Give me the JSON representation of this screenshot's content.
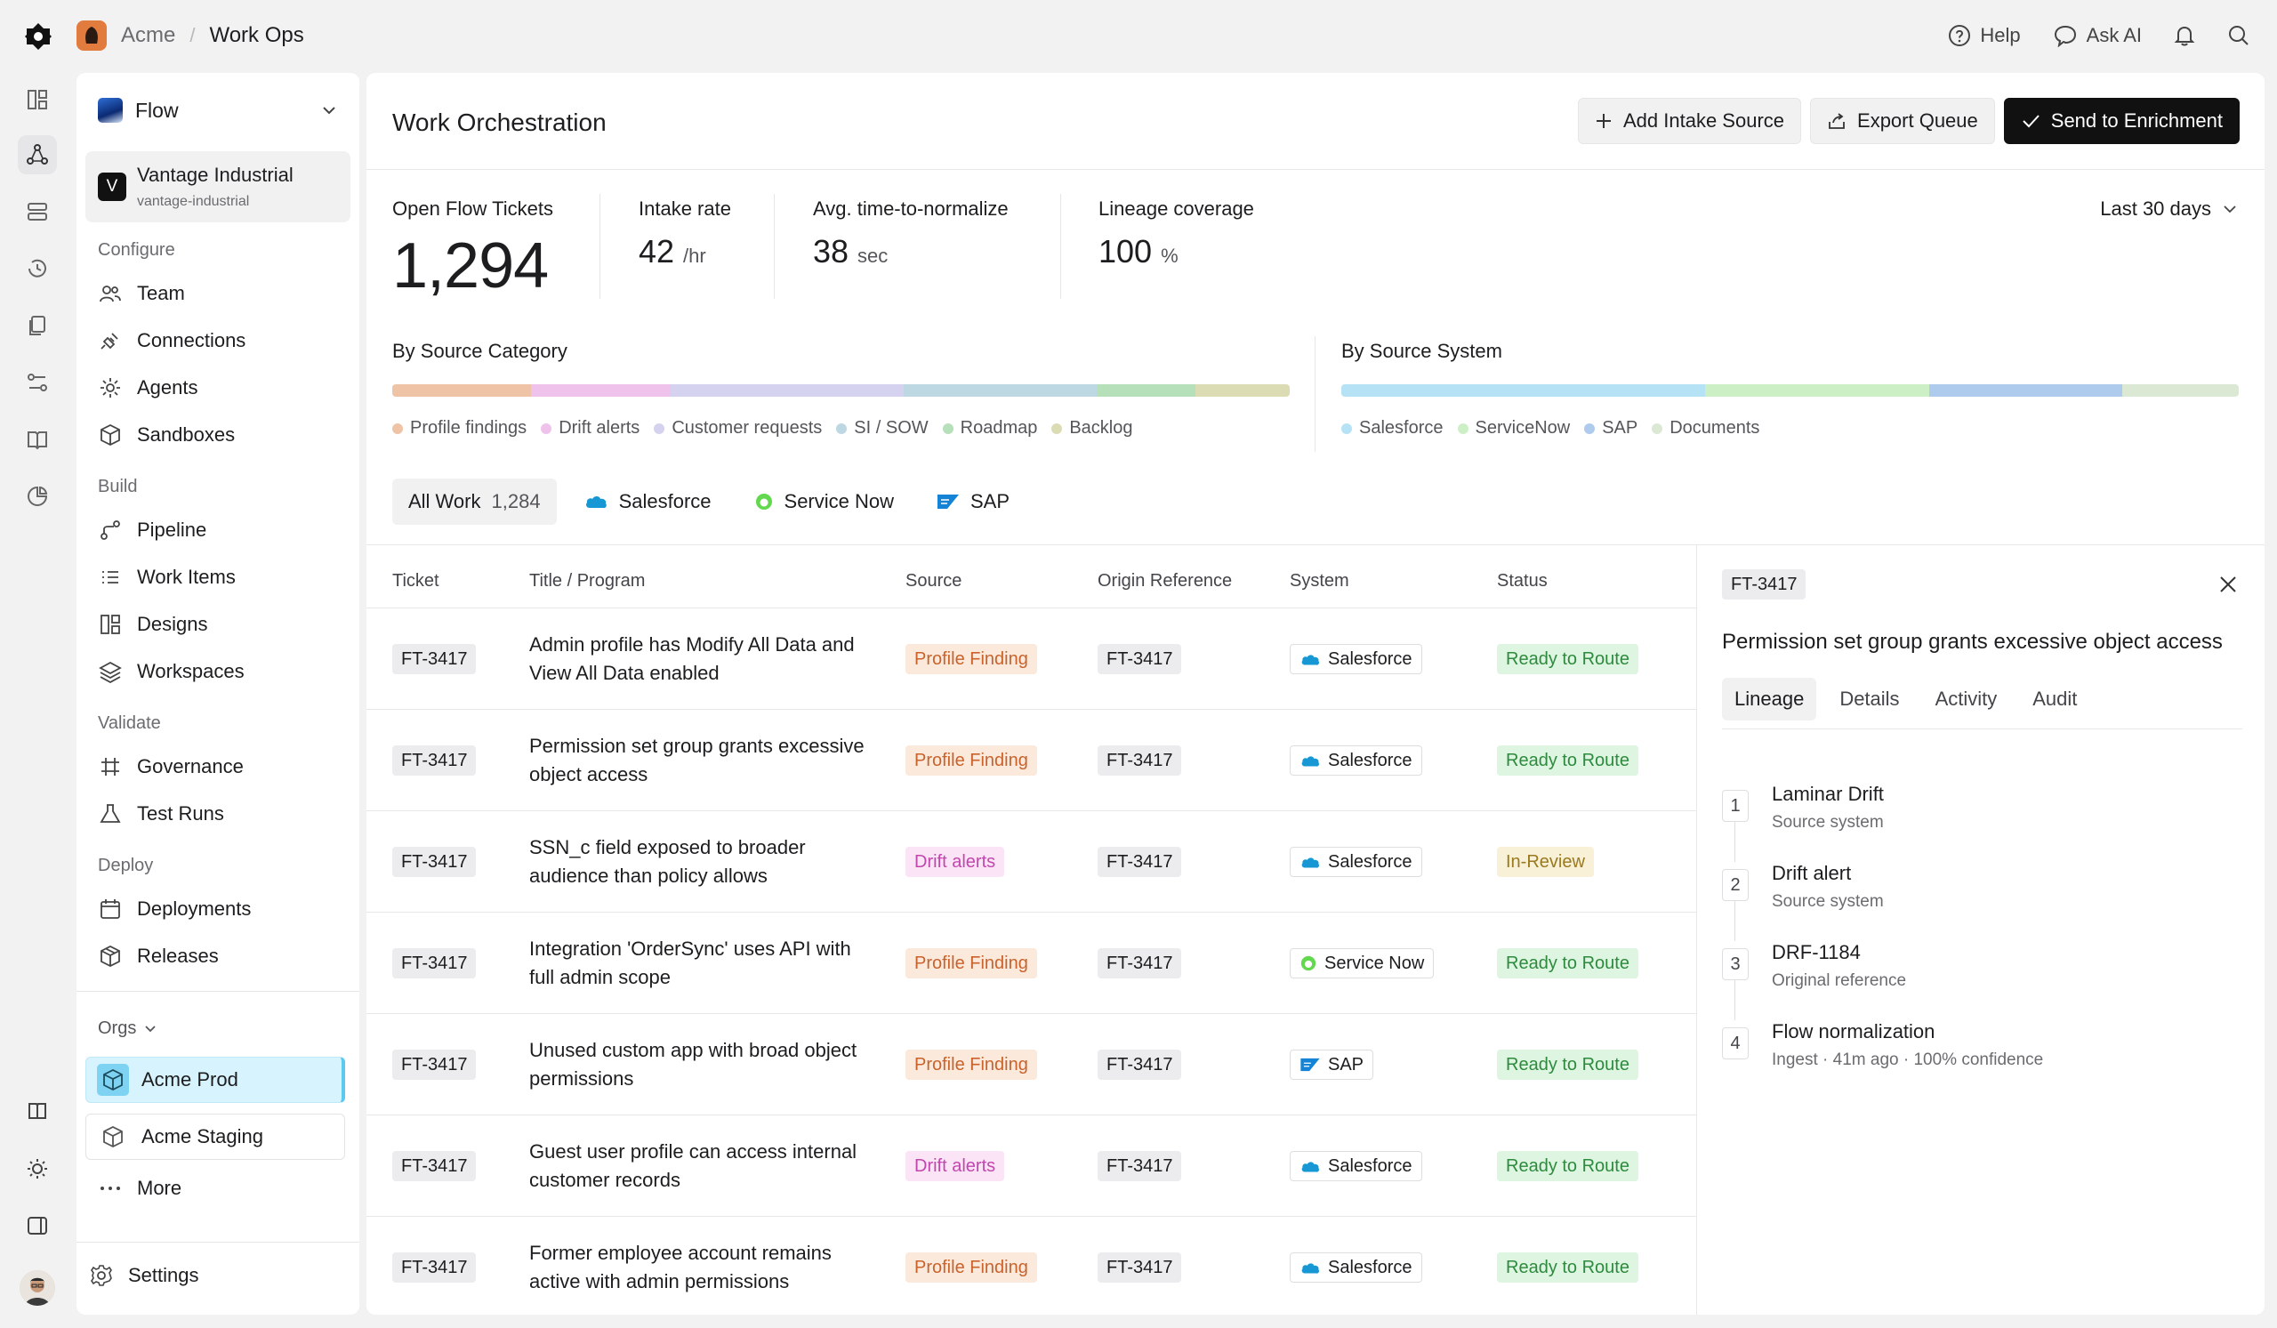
{
  "breadcrumb": {
    "org": "Acme",
    "separator": "/",
    "page": "Work Ops"
  },
  "top_actions": {
    "help": "Help",
    "ask_ai": "Ask AI"
  },
  "sidebar": {
    "flow_selector": "Flow",
    "org": {
      "name": "Vantage Industrial",
      "slug": "vantage-industrial",
      "initial": "V"
    },
    "sections": {
      "configure": "Configure",
      "build": "Build",
      "validate": "Validate",
      "deploy": "Deploy"
    },
    "items": {
      "team": "Team",
      "connections": "Connections",
      "agents": "Agents",
      "sandboxes": "Sandboxes",
      "pipeline": "Pipeline",
      "work_items": "Work Items",
      "designs": "Designs",
      "workspaces": "Workspaces",
      "governance": "Governance",
      "test_runs": "Test Runs",
      "deployments": "Deployments",
      "releases": "Releases"
    },
    "orgs_label": "Orgs",
    "orgs": [
      "Acme Prod",
      "Acme Staging"
    ],
    "more": "More",
    "settings": "Settings"
  },
  "main": {
    "title": "Work Orchestration",
    "buttons": {
      "add_intake": "Add Intake Source",
      "export": "Export Queue",
      "send": "Send to Enrichment"
    },
    "stats": {
      "open": {
        "label": "Open Flow Tickets",
        "value": "1,294"
      },
      "intake": {
        "label": "Intake rate",
        "value": "42",
        "unit": "/hr"
      },
      "ttn": {
        "label": "Avg. time-to-normalize",
        "value": "38",
        "unit": "sec"
      },
      "lineage": {
        "label": "Lineage coverage",
        "value": "100",
        "unit": "%"
      }
    },
    "range": "Last 30 days",
    "by_category": {
      "title": "By Source Category",
      "segments": [
        {
          "name": "Profile findings",
          "share": 0.155,
          "color": "#efc4a6"
        },
        {
          "name": "Drift alerts",
          "share": 0.155,
          "color": "#efc2eb"
        },
        {
          "name": "Customer requests",
          "share": 0.26,
          "color": "#d4d2ee"
        },
        {
          "name": "SI / SOW",
          "share": 0.215,
          "color": "#bed8e3"
        },
        {
          "name": "Roadmap",
          "share": 0.11,
          "color": "#b6e0b9"
        },
        {
          "name": "Backlog",
          "share": 0.105,
          "color": "#dcdcb4"
        }
      ]
    },
    "by_system": {
      "title": "By Source System",
      "segments": [
        {
          "name": "Salesforce",
          "share": 0.405,
          "color": "#b6e2f5"
        },
        {
          "name": "ServiceNow",
          "share": 0.25,
          "color": "#cdefc6"
        },
        {
          "name": "SAP",
          "share": 0.215,
          "color": "#aecbee"
        },
        {
          "name": "Documents",
          "share": 0.13,
          "color": "#dbe8d4"
        }
      ]
    },
    "tabs": [
      {
        "label": "All Work",
        "count": "1,284"
      },
      {
        "label": "Salesforce"
      },
      {
        "label": "Service Now"
      },
      {
        "label": "SAP"
      }
    ],
    "columns": [
      "Ticket",
      "Title / Program",
      "Source",
      "Origin Reference",
      "System",
      "Status"
    ],
    "rows": [
      {
        "ticket": "FT-3417",
        "title": "Admin profile has Modify All Data and View All Data enabled",
        "source": "Profile Finding",
        "source_kind": "pf",
        "origin": "FT-3417",
        "system": "Salesforce",
        "system_kind": "sf",
        "status": "Ready to Route",
        "status_kind": "ready"
      },
      {
        "ticket": "FT-3417",
        "title": "Permission set group grants excessive object access",
        "source": "Profile Finding",
        "source_kind": "pf",
        "origin": "FT-3417",
        "system": "Salesforce",
        "system_kind": "sf",
        "status": "Ready to Route",
        "status_kind": "ready"
      },
      {
        "ticket": "FT-3417",
        "title": "SSN_c field exposed to broader audience than policy allows",
        "source": "Drift alerts",
        "source_kind": "drift",
        "origin": "FT-3417",
        "system": "Salesforce",
        "system_kind": "sf",
        "status": "In-Review",
        "status_kind": "review"
      },
      {
        "ticket": "FT-3417",
        "title": "Integration 'OrderSync' uses API with full admin scope",
        "source": "Profile Finding",
        "source_kind": "pf",
        "origin": "FT-3417",
        "system": "Service Now",
        "system_kind": "sn",
        "status": "Ready to Route",
        "status_kind": "ready"
      },
      {
        "ticket": "FT-3417",
        "title": "Unused custom app with broad object permissions",
        "source": "Profile Finding",
        "source_kind": "pf",
        "origin": "FT-3417",
        "system": "SAP",
        "system_kind": "sap",
        "status": "Ready to Route",
        "status_kind": "ready"
      },
      {
        "ticket": "FT-3417",
        "title": "Guest user profile can access internal customer records",
        "source": "Drift alerts",
        "source_kind": "drift",
        "origin": "FT-3417",
        "system": "Salesforce",
        "system_kind": "sf",
        "status": "Ready to Route",
        "status_kind": "ready"
      },
      {
        "ticket": "FT-3417",
        "title": "Former employee account remains active with admin permissions",
        "source": "Profile Finding",
        "source_kind": "pf",
        "origin": "FT-3417",
        "system": "Salesforce",
        "system_kind": "sf",
        "status": "Ready to Route",
        "status_kind": "ready"
      }
    ],
    "detail": {
      "ticket": "FT-3417",
      "title": "Permission set group grants excessive object access",
      "tabs": [
        "Lineage",
        "Details",
        "Activity",
        "Audit"
      ],
      "lineage": [
        {
          "n": "1",
          "title": "Laminar Drift",
          "sub": "Source system"
        },
        {
          "n": "2",
          "title": "Drift alert",
          "sub": "Source system"
        },
        {
          "n": "3",
          "title": "DRF-1184",
          "sub": "Original reference"
        },
        {
          "n": "4",
          "title": "Flow normalization",
          "sub": "Ingest · 41m ago · 100% confidence"
        }
      ]
    }
  }
}
